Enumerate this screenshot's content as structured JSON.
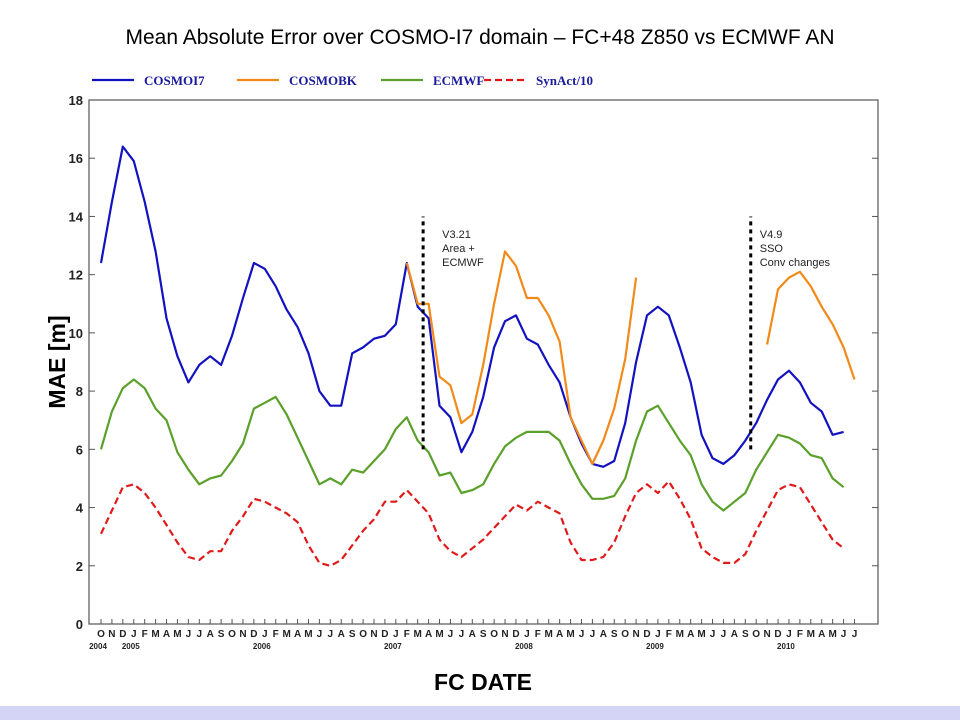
{
  "chart_data": {
    "type": "line",
    "title": "Mean Absolute Error over COSMO-I7 domain – FC+48 Z850 vs ECMWF AN",
    "xlabel": "FC DATE",
    "ylabel": "MAE [m]",
    "ylim": [
      0,
      18
    ],
    "yticks": [
      "0",
      "2",
      "4",
      "6",
      "8",
      "10",
      "12",
      "14",
      "16",
      "18"
    ],
    "grid": false,
    "legend_position": "top",
    "month_labels": [
      "O",
      "N",
      "D",
      "J",
      "F",
      "M",
      "A",
      "M",
      "J",
      "J",
      "A",
      "S",
      "O",
      "N",
      "D",
      "J",
      "F",
      "M",
      "A",
      "M",
      "J",
      "J",
      "A",
      "S",
      "O",
      "N",
      "D",
      "J",
      "F",
      "M",
      "A",
      "M",
      "J",
      "J",
      "A",
      "S",
      "O",
      "N",
      "D",
      "J",
      "F",
      "M",
      "A",
      "M",
      "J",
      "J",
      "A",
      "S",
      "O",
      "N",
      "D",
      "J",
      "F",
      "M",
      "A",
      "M",
      "J",
      "J",
      "A",
      "S",
      "O",
      "N",
      "D",
      "J",
      "F",
      "M",
      "A",
      "M",
      "J",
      "J"
    ],
    "year_labels": [
      {
        "label": "2004",
        "index": 0
      },
      {
        "label": "2005",
        "index": 3
      },
      {
        "label": "2006",
        "index": 15
      },
      {
        "label": "2007",
        "index": 27
      },
      {
        "label": "2008",
        "index": 39
      },
      {
        "label": "2009",
        "index": 51
      },
      {
        "label": "2010",
        "index": 63
      }
    ],
    "series": [
      {
        "name": "COSMOI7",
        "color": "#1212c0",
        "dashed": false,
        "start_index": 0,
        "values": [
          12.4,
          14.5,
          16.4,
          15.9,
          14.5,
          12.8,
          10.5,
          9.2,
          8.3,
          8.9,
          9.2,
          8.9,
          9.9,
          11.2,
          12.4,
          12.2,
          11.6,
          10.8,
          10.2,
          9.3,
          8.0,
          7.5,
          7.5,
          9.3,
          9.5,
          9.8,
          9.9,
          10.3,
          12.4,
          10.9,
          10.5,
          7.5,
          7.1,
          5.9,
          6.6,
          7.8,
          9.5,
          10.4,
          10.6,
          9.8,
          9.6,
          8.9,
          8.3,
          7.1,
          6.2,
          5.5,
          5.4,
          5.6,
          6.9,
          9.0,
          10.6,
          10.9,
          10.6,
          9.5,
          8.3,
          6.5,
          5.7,
          5.5,
          5.8,
          6.3,
          6.9,
          7.7,
          8.4,
          8.7,
          8.3,
          7.6,
          7.3,
          6.5,
          6.6
        ]
      },
      {
        "name": "COSMOBK",
        "color": "#f28a1a",
        "dashed": false,
        "start_index": 28,
        "values": [
          12.4,
          11.0,
          11.0,
          8.5,
          8.2,
          6.9,
          7.2,
          8.9,
          11.0,
          12.8,
          12.3,
          11.2,
          11.2,
          10.6,
          9.7,
          7.1,
          6.3,
          5.5,
          6.3,
          7.4,
          9.1,
          11.9
        ]
      },
      {
        "name": "COSMOBK",
        "color": "#f28a1a",
        "dashed": false,
        "start_index": 61,
        "values": [
          9.6,
          11.5,
          11.9,
          12.1,
          11.6,
          10.9,
          10.3,
          9.5,
          8.4
        ]
      },
      {
        "name": "ECMWF",
        "color": "#5aa02a",
        "dashed": false,
        "start_index": 0,
        "values": [
          6.0,
          7.3,
          8.1,
          8.4,
          8.1,
          7.4,
          7.0,
          5.9,
          5.3,
          4.8,
          5.0,
          5.1,
          5.6,
          6.2,
          7.4,
          7.6,
          7.8,
          7.2,
          6.4,
          5.6,
          4.8,
          5.0,
          4.8,
          5.3,
          5.2,
          5.6,
          6.0,
          6.7,
          7.1,
          6.3,
          5.9,
          5.1,
          5.2,
          4.5,
          4.6,
          4.8,
          5.5,
          6.1,
          6.4,
          6.6,
          6.6,
          6.6,
          6.3,
          5.5,
          4.8,
          4.3,
          4.3,
          4.4,
          5.0,
          6.3,
          7.3,
          7.5,
          6.9,
          6.3,
          5.8,
          4.8,
          4.2,
          3.9,
          4.2,
          4.5,
          5.3,
          5.9,
          6.5,
          6.4,
          6.2,
          5.8,
          5.7,
          5.0,
          4.7
        ]
      },
      {
        "name": "SynAct/10",
        "color": "#e01a1a",
        "dashed": true,
        "start_index": 0,
        "values": [
          3.1,
          3.9,
          4.7,
          4.8,
          4.5,
          4.0,
          3.4,
          2.8,
          2.3,
          2.2,
          2.5,
          2.5,
          3.2,
          3.7,
          4.3,
          4.2,
          4.0,
          3.8,
          3.5,
          2.7,
          2.1,
          2.0,
          2.2,
          2.7,
          3.2,
          3.6,
          4.2,
          4.2,
          4.6,
          4.2,
          3.8,
          2.9,
          2.5,
          2.3,
          2.6,
          2.9,
          3.3,
          3.7,
          4.1,
          3.9,
          4.2,
          4.0,
          3.8,
          2.8,
          2.2,
          2.2,
          2.3,
          2.8,
          3.7,
          4.5,
          4.8,
          4.5,
          4.9,
          4.3,
          3.6,
          2.6,
          2.3,
          2.1,
          2.1,
          2.4,
          3.2,
          3.9,
          4.6,
          4.8,
          4.7,
          4.1,
          3.5,
          2.9,
          2.6
        ]
      }
    ],
    "legend": [
      {
        "label": "COSMOI7",
        "color": "#1212c0",
        "dashed": false
      },
      {
        "label": "COSMOBK",
        "color": "#f28a1a",
        "dashed": false
      },
      {
        "label": "ECMWF",
        "color": "#5aa02a",
        "dashed": false
      },
      {
        "label": "SynAct/10",
        "color": "#e01a1a",
        "dashed": true
      }
    ],
    "annotations": [
      {
        "lines": [
          "V3.21",
          "Area +",
          "ECMWF"
        ],
        "marker_index": 29.5,
        "y_from": 6,
        "y_to": 14
      },
      {
        "lines": [
          "V4.9",
          "SSO",
          "Conv changes"
        ],
        "marker_index": 59.5,
        "y_from": 6,
        "y_to": 14
      }
    ]
  }
}
